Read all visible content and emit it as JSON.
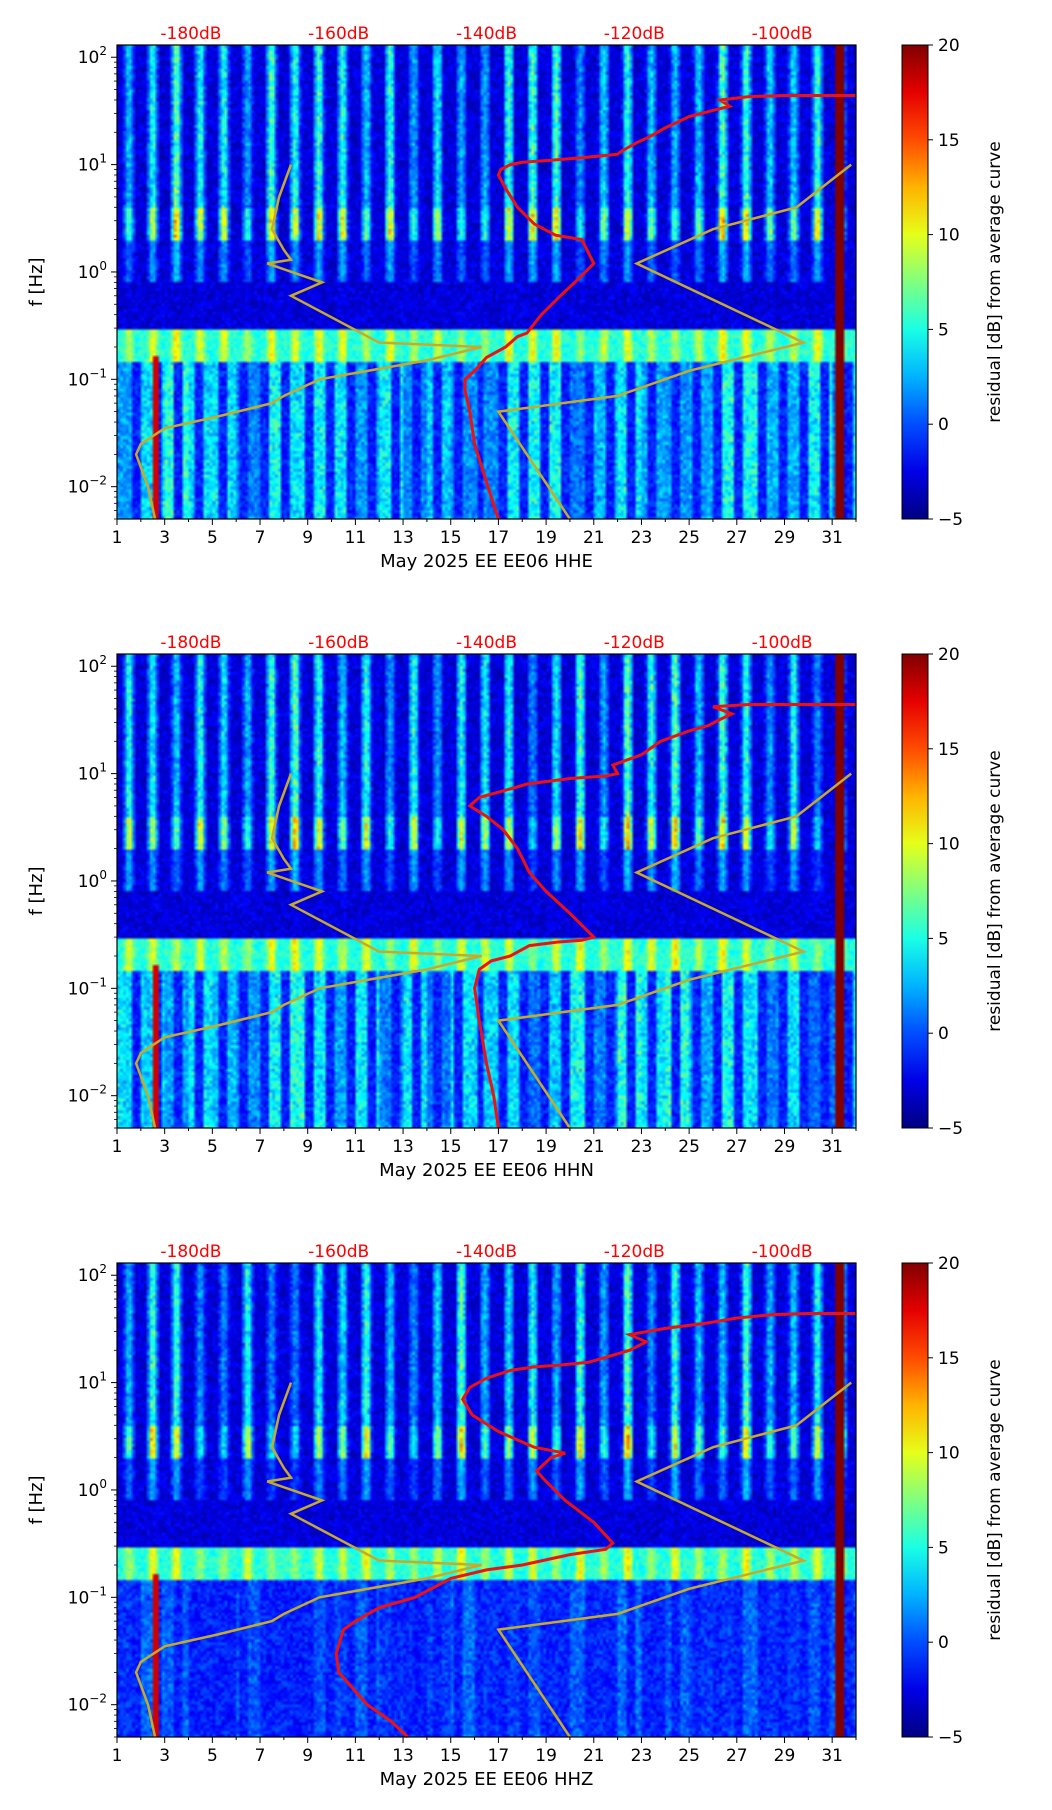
{
  "colors": {
    "db_scale_label": "#ff0000",
    "median_curve": "#ee1111",
    "noise_model": "#c8aa2a",
    "axis_text": "#000000"
  },
  "chart_data": [
    {
      "type": "heatmap",
      "title": "",
      "xlabel": "May 2025 EE EE06  HHE",
      "ylabel": "f [Hz]",
      "colorbar_label": "residual [dB] from average curve",
      "colorbar_range": [
        -5,
        20
      ],
      "colorbar_ticks": [
        "20",
        "15",
        "10",
        "5",
        "0",
        "−5"
      ],
      "colorbar_tick_values": [
        20,
        15,
        10,
        5,
        0,
        -5
      ],
      "xlim": [
        1,
        32
      ],
      "x_ticks": [
        "1",
        "3",
        "5",
        "7",
        "9",
        "11",
        "13",
        "15",
        "17",
        "19",
        "21",
        "23",
        "25",
        "27",
        "29",
        "31"
      ],
      "ylim_hz": [
        0.005,
        130
      ],
      "y_ticks": [
        {
          "base": "10",
          "exp": "2",
          "value": 100
        },
        {
          "base": "10",
          "exp": "1",
          "value": 10
        },
        {
          "base": "10",
          "exp": "0",
          "value": 1
        },
        {
          "base": "10",
          "exp": "−1",
          "value": 0.1
        },
        {
          "base": "10",
          "exp": "−2",
          "value": 0.01
        }
      ],
      "top_db_ticks": [
        "-180dB",
        "-160dB",
        "-140dB",
        "-120dB",
        "-100dB"
      ],
      "top_db_positions": [
        4.1,
        10.3,
        16.5,
        22.7,
        28.9
      ],
      "median_psd_curve": {
        "x_day": [
          17,
          16.7,
          16.4,
          16.0,
          15.8,
          15.6,
          15.6,
          16.0,
          16.5,
          17.3,
          17.8,
          18.2,
          18.8,
          19.6,
          20.2,
          21.0,
          20.5,
          19.4,
          18.5,
          17.8,
          17.3,
          17.0,
          17.1,
          17.3,
          17.5,
          18.0,
          19.2,
          20.3,
          21.2,
          22.0,
          22.2,
          22.8,
          23.3,
          24.0,
          25.0,
          26.0,
          26.7,
          26.3,
          27.5,
          29.0,
          32.0
        ],
        "y_hz": [
          0.005,
          0.008,
          0.013,
          0.025,
          0.05,
          0.08,
          0.1,
          0.12,
          0.16,
          0.2,
          0.25,
          0.27,
          0.4,
          0.6,
          0.8,
          1.2,
          2.0,
          2.2,
          2.8,
          4.0,
          6.0,
          8.0,
          9.0,
          9.5,
          10.0,
          10.5,
          11.0,
          11.5,
          12.0,
          12.5,
          13.5,
          16.0,
          18.0,
          22.0,
          28.0,
          32.0,
          35.0,
          40.0,
          43.0,
          44.0,
          44.0
        ]
      },
      "noise_model_curves": [
        {
          "name": "low_noise_model",
          "x_day": [
            8.3,
            7.8,
            7.5,
            8.0,
            8.3,
            7.3,
            9.6,
            8.3,
            12.0,
            16.3,
            14.0,
            9.5,
            8.0,
            7.5,
            5.2,
            3.0,
            2.0,
            1.8,
            2.3,
            2.6
          ],
          "y_hz": [
            10,
            5,
            2.5,
            1.6,
            1.3,
            1.2,
            0.8,
            0.6,
            0.22,
            0.2,
            0.15,
            0.1,
            0.07,
            0.06,
            0.045,
            0.035,
            0.025,
            0.02,
            0.01,
            0.005
          ]
        },
        {
          "name": "high_noise_model",
          "x_day": [
            31.8,
            29.5,
            26.0,
            22.8,
            29.8,
            25.0,
            22.0,
            17.0,
            20.0
          ],
          "y_hz": [
            10,
            4,
            2.5,
            1.2,
            0.22,
            0.12,
            0.07,
            0.05,
            0.005
          ]
        }
      ]
    },
    {
      "type": "heatmap",
      "title": "",
      "xlabel": "May 2025 EE EE06  HHN",
      "ylabel": "f [Hz]",
      "colorbar_label": "residual [dB] from average curve",
      "colorbar_range": [
        -5,
        20
      ],
      "colorbar_ticks": [
        "20",
        "15",
        "10",
        "5",
        "0",
        "−5"
      ],
      "colorbar_tick_values": [
        20,
        15,
        10,
        5,
        0,
        -5
      ],
      "xlim": [
        1,
        32
      ],
      "x_ticks": [
        "1",
        "3",
        "5",
        "7",
        "9",
        "11",
        "13",
        "15",
        "17",
        "19",
        "21",
        "23",
        "25",
        "27",
        "29",
        "31"
      ],
      "ylim_hz": [
        0.005,
        130
      ],
      "y_ticks": [
        {
          "base": "10",
          "exp": "2",
          "value": 100
        },
        {
          "base": "10",
          "exp": "1",
          "value": 10
        },
        {
          "base": "10",
          "exp": "0",
          "value": 1
        },
        {
          "base": "10",
          "exp": "−1",
          "value": 0.1
        },
        {
          "base": "10",
          "exp": "−2",
          "value": 0.01
        }
      ],
      "top_db_ticks": [
        "-180dB",
        "-160dB",
        "-140dB",
        "-120dB",
        "-100dB"
      ],
      "top_db_positions": [
        4.1,
        10.3,
        16.5,
        22.7,
        28.9
      ],
      "median_psd_curve": {
        "x_day": [
          17,
          16.8,
          16.5,
          16.2,
          16.0,
          16.2,
          16.7,
          17.5,
          18.3,
          19.5,
          20.5,
          21.0,
          20.0,
          19.0,
          18.3,
          17.8,
          17.2,
          16.5,
          15.8,
          16.2,
          17.3,
          18.2,
          20.0,
          21.5,
          22.0,
          21.8,
          23.0,
          23.8,
          25.0,
          25.8,
          26.3,
          26.8,
          26.0,
          27.5,
          29.5,
          32.0
        ],
        "y_hz": [
          0.005,
          0.01,
          0.02,
          0.05,
          0.1,
          0.15,
          0.18,
          0.2,
          0.25,
          0.27,
          0.28,
          0.3,
          0.5,
          0.8,
          1.2,
          2.0,
          3.0,
          4.0,
          5.0,
          6.0,
          7.0,
          8.0,
          9.0,
          9.5,
          10.0,
          12.0,
          15.0,
          20.0,
          25.0,
          28.0,
          32.0,
          36.0,
          42.0,
          44.0,
          44.0,
          44.0
        ]
      },
      "noise_model_curves": [
        {
          "name": "low_noise_model",
          "x_day": [
            8.3,
            7.8,
            7.5,
            8.0,
            8.3,
            7.3,
            9.6,
            8.3,
            12.0,
            16.3,
            14.0,
            9.5,
            8.0,
            7.5,
            5.2,
            3.0,
            2.0,
            1.8,
            2.3,
            2.6
          ],
          "y_hz": [
            10,
            5,
            2.5,
            1.6,
            1.3,
            1.2,
            0.8,
            0.6,
            0.22,
            0.2,
            0.15,
            0.1,
            0.07,
            0.06,
            0.045,
            0.035,
            0.025,
            0.02,
            0.01,
            0.005
          ]
        },
        {
          "name": "high_noise_model",
          "x_day": [
            31.8,
            29.5,
            26.0,
            22.8,
            29.8,
            25.0,
            22.0,
            17.0,
            20.0
          ],
          "y_hz": [
            10,
            4,
            2.5,
            1.2,
            0.22,
            0.12,
            0.07,
            0.05,
            0.005
          ]
        }
      ]
    },
    {
      "type": "heatmap",
      "title": "",
      "xlabel": "May 2025 EE EE06  HHZ",
      "ylabel": "f [Hz]",
      "colorbar_label": "residual [dB] from average curve",
      "colorbar_range": [
        -5,
        20
      ],
      "colorbar_ticks": [
        "20",
        "15",
        "10",
        "5",
        "0",
        "−5"
      ],
      "colorbar_tick_values": [
        20,
        15,
        10,
        5,
        0,
        -5
      ],
      "xlim": [
        1,
        32
      ],
      "x_ticks": [
        "1",
        "3",
        "5",
        "7",
        "9",
        "11",
        "13",
        "15",
        "17",
        "19",
        "21",
        "23",
        "25",
        "27",
        "29",
        "31"
      ],
      "ylim_hz": [
        0.005,
        130
      ],
      "y_ticks": [
        {
          "base": "10",
          "exp": "2",
          "value": 100
        },
        {
          "base": "10",
          "exp": "1",
          "value": 10
        },
        {
          "base": "10",
          "exp": "0",
          "value": 1
        },
        {
          "base": "10",
          "exp": "−1",
          "value": 0.1
        },
        {
          "base": "10",
          "exp": "−2",
          "value": 0.01
        }
      ],
      "top_db_ticks": [
        "-180dB",
        "-160dB",
        "-140dB",
        "-120dB",
        "-100dB"
      ],
      "top_db_positions": [
        4.1,
        10.3,
        16.5,
        22.7,
        28.9
      ],
      "median_psd_curve": {
        "x_day": [
          13.2,
          12.5,
          11.5,
          10.8,
          10.3,
          10.2,
          10.5,
          11.0,
          12.0,
          13.5,
          15.0,
          16.5,
          18.0,
          20.0,
          21.5,
          21.8,
          21.0,
          19.8,
          19.0,
          18.6,
          19.2,
          19.8,
          18.5,
          17.0,
          15.9,
          15.5,
          15.8,
          16.5,
          17.5,
          18.5,
          19.5,
          20.8,
          21.8,
          22.5,
          23.2,
          22.5,
          24.0,
          25.8,
          27.0,
          28.5,
          30.0,
          32.0
        ],
        "y_hz": [
          0.005,
          0.007,
          0.01,
          0.015,
          0.02,
          0.03,
          0.05,
          0.06,
          0.08,
          0.1,
          0.15,
          0.18,
          0.2,
          0.25,
          0.28,
          0.32,
          0.5,
          0.8,
          1.2,
          1.5,
          2.0,
          2.2,
          2.5,
          3.5,
          5.0,
          7.0,
          9.0,
          11.0,
          13.0,
          14.0,
          14.5,
          15.5,
          18.0,
          20.0,
          24.0,
          28.0,
          32.0,
          36.0,
          40.0,
          43.0,
          44.0,
          44.0
        ]
      },
      "noise_model_curves": [
        {
          "name": "low_noise_model",
          "x_day": [
            8.3,
            7.8,
            7.5,
            8.0,
            8.3,
            7.3,
            9.6,
            8.3,
            12.0,
            16.3,
            14.0,
            9.5,
            8.0,
            7.5,
            5.2,
            3.0,
            2.0,
            1.8,
            2.3,
            2.6
          ],
          "y_hz": [
            10,
            5,
            2.5,
            1.6,
            1.3,
            1.2,
            0.8,
            0.6,
            0.22,
            0.2,
            0.15,
            0.1,
            0.07,
            0.06,
            0.045,
            0.035,
            0.025,
            0.02,
            0.01,
            0.005
          ]
        },
        {
          "name": "high_noise_model",
          "x_day": [
            31.8,
            29.5,
            26.0,
            22.8,
            29.8,
            25.0,
            22.0,
            17.0,
            20.0
          ],
          "y_hz": [
            10,
            4,
            2.5,
            1.2,
            0.22,
            0.12,
            0.07,
            0.05,
            0.005
          ]
        }
      ]
    }
  ]
}
